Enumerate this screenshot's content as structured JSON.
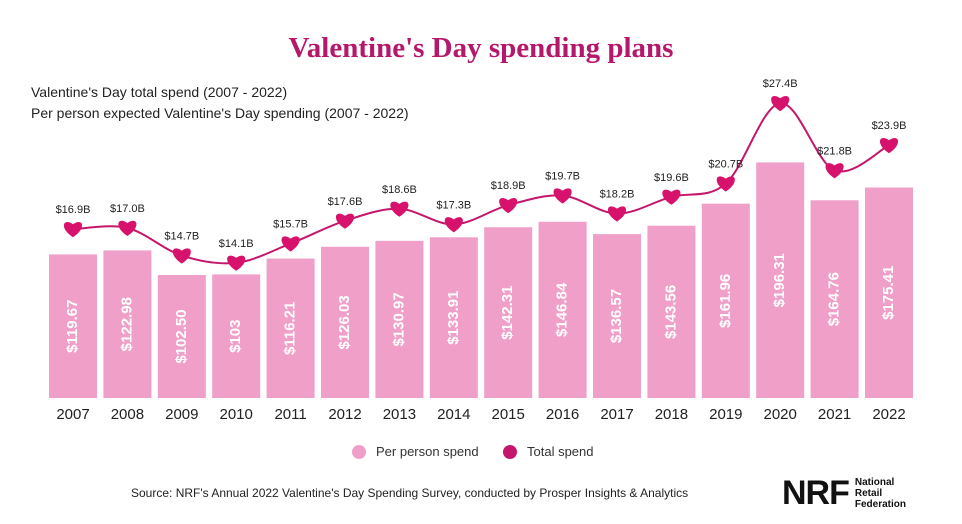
{
  "title": "Valentine's Day spending plans",
  "subtitles": [
    "Valentine's Day total spend (2007 - 2022)",
    "Per person expected Valentine's Day spending (2007 - 2022)"
  ],
  "legend": {
    "per_person": "Per person spend",
    "total": "Total spend"
  },
  "source": "Source: NRF's Annual 2022 Valentine's Day Spending Survey, conducted by Prosper Insights & Analytics",
  "logo": {
    "mark": "NRF",
    "name": "National Retail Federation"
  },
  "colors": {
    "bar": "#f0a0c8",
    "line": "#c4176b",
    "heart": "#d6126c",
    "title": "#b5176b"
  },
  "chart_data": {
    "type": "bar",
    "categories": [
      "2007",
      "2008",
      "2009",
      "2010",
      "2011",
      "2012",
      "2013",
      "2014",
      "2015",
      "2016",
      "2017",
      "2018",
      "2019",
      "2020",
      "2021",
      "2022"
    ],
    "series": [
      {
        "name": "Per person spend",
        "type": "bar",
        "values": [
          119.67,
          122.98,
          102.5,
          103,
          116.21,
          126.03,
          130.97,
          133.91,
          142.31,
          146.84,
          136.57,
          143.56,
          161.96,
          196.31,
          164.76,
          175.41
        ],
        "labels": [
          "$119.67",
          "$122.98",
          "$102.50",
          "$103",
          "$116.21",
          "$126.03",
          "$130.97",
          "$133.91",
          "$142.31",
          "$146.84",
          "$136.57",
          "$143.56",
          "$161.96",
          "$196.31",
          "$164.76",
          "$175.41"
        ]
      },
      {
        "name": "Total spend",
        "type": "line",
        "unit": "billion USD",
        "values": [
          16.9,
          17.0,
          14.7,
          14.1,
          15.7,
          17.6,
          18.6,
          17.3,
          18.9,
          19.7,
          18.2,
          19.6,
          20.7,
          27.4,
          21.8,
          23.9
        ],
        "labels": [
          "$16.9B",
          "$17.0B",
          "$14.7B",
          "$14.1B",
          "$15.7B",
          "$17.6B",
          "$18.6B",
          "$17.3B",
          "$18.9B",
          "$19.7B",
          "$18.2B",
          "$19.6B",
          "$20.7B",
          "$27.4B",
          "$21.8B",
          "$23.9B"
        ]
      }
    ]
  }
}
